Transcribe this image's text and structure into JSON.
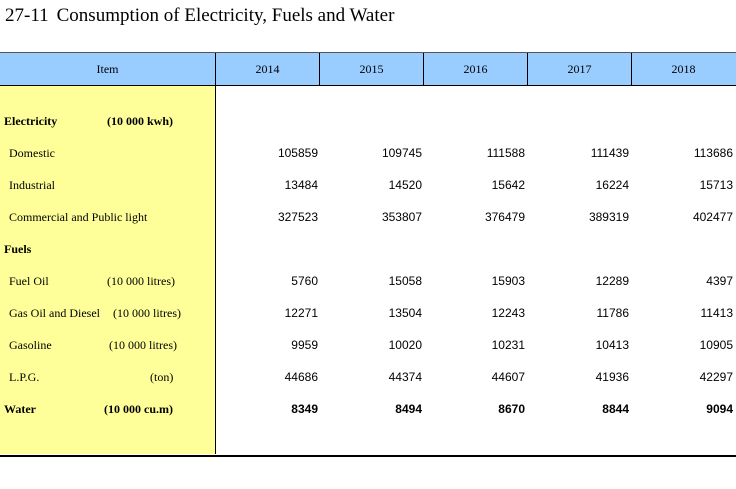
{
  "title": {
    "number": "27-11",
    "text": "Consumption of Electricity, Fuels and Water"
  },
  "table": {
    "header": {
      "item": "Item",
      "years": [
        "2014",
        "2015",
        "2016",
        "2017",
        "2018"
      ]
    },
    "rows": [
      {
        "label": "Electricity",
        "unit": "(10 000 kwh)",
        "values": []
      },
      {
        "label": "Domestic",
        "unit": "",
        "values": [
          "105859",
          "109745",
          "111588",
          "111439",
          "113686"
        ]
      },
      {
        "label": "Industrial",
        "unit": "",
        "values": [
          "13484",
          "14520",
          "15642",
          "16224",
          "15713"
        ]
      },
      {
        "label": "Commercial and Public light",
        "unit": "",
        "values": [
          "327523",
          "353807",
          "376479",
          "389319",
          "402477"
        ]
      },
      {
        "label": "Fuels",
        "unit": "",
        "values": []
      },
      {
        "label": "Fuel Oil",
        "unit": "(10 000 litres)",
        "values": [
          "5760",
          "15058",
          "15903",
          "12289",
          "4397"
        ]
      },
      {
        "label": "Gas Oil and Diesel",
        "unit": "(10 000 litres)",
        "values": [
          "12271",
          "13504",
          "12243",
          "11786",
          "11413"
        ]
      },
      {
        "label": "Gasoline",
        "unit": "(10 000 litres)",
        "values": [
          "9959",
          "10020",
          "10231",
          "10413",
          "10905"
        ]
      },
      {
        "label": "L.P.G.",
        "unit": "(ton)",
        "values": [
          "44686",
          "44374",
          "44607",
          "41936",
          "42297"
        ]
      },
      {
        "label": "Water",
        "unit": "(10 000 cu.m)",
        "values": [
          "8349",
          "8494",
          "8670",
          "8844",
          "9094"
        ]
      }
    ]
  }
}
